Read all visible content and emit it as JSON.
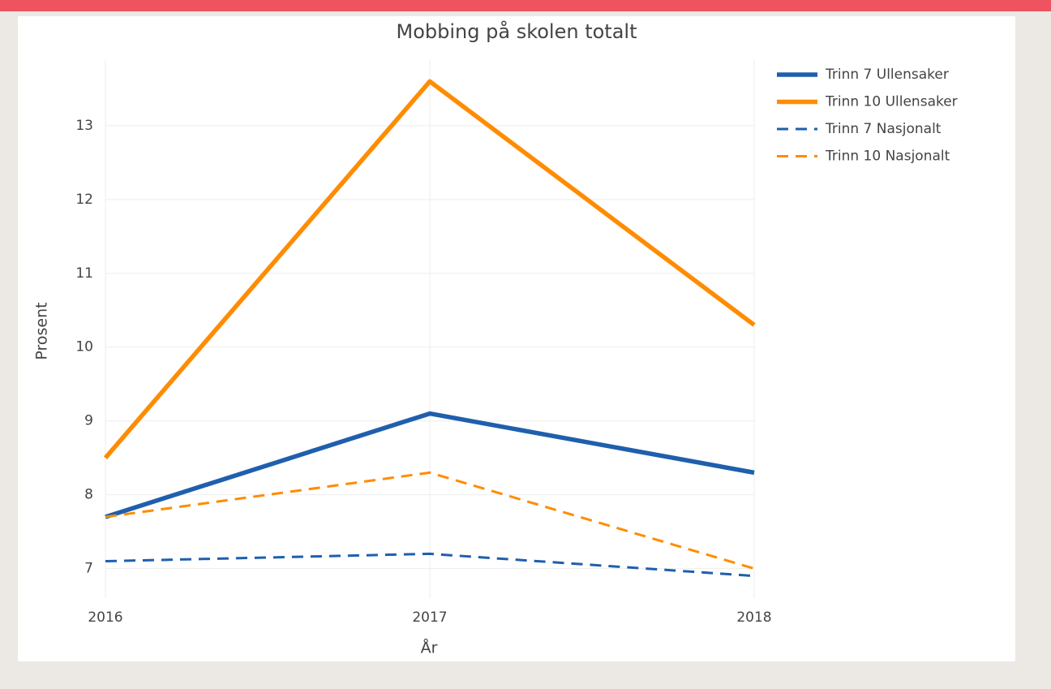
{
  "chart_data": {
    "type": "line",
    "title": "Mobbing på skolen totalt",
    "x_label": "År",
    "y_label": "Prosent",
    "x": [
      2016,
      2017,
      2018
    ],
    "series": [
      {
        "name": "Trinn 7 Ullensaker",
        "color": "#1f5fad",
        "dash": false,
        "values": [
          7.7,
          9.1,
          8.3
        ]
      },
      {
        "name": "Trinn 10 Ullensaker",
        "color": "#ff8c00",
        "dash": false,
        "values": [
          8.5,
          13.6,
          10.3
        ]
      },
      {
        "name": "Trinn 7 Nasjonalt",
        "color": "#1f5fad",
        "dash": true,
        "values": [
          7.1,
          7.2,
          6.9
        ]
      },
      {
        "name": "Trinn 10 Nasjonalt",
        "color": "#ff8c00",
        "dash": true,
        "values": [
          7.7,
          8.3,
          7.0
        ]
      }
    ],
    "xlim": [
      2016,
      2018
    ],
    "xticks": [
      2016,
      2017,
      2018
    ],
    "ylim": [
      6.6,
      13.9
    ],
    "yticks": [
      7,
      8,
      9,
      10,
      11,
      12,
      13
    ],
    "grid": true,
    "legend": "top-right"
  }
}
